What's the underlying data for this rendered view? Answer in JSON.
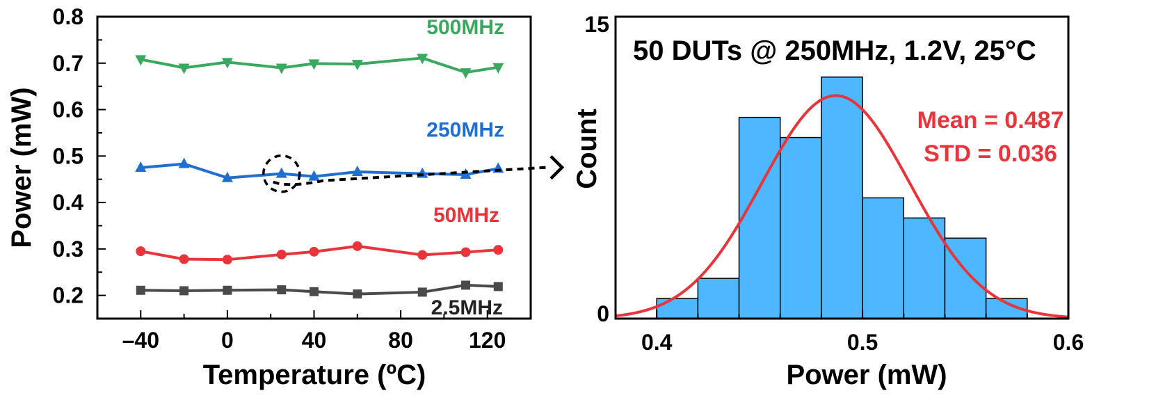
{
  "chart_data": [
    {
      "type": "line",
      "xlabel": "Temperature (ºC)",
      "ylabel": "Power (mW)",
      "xlim": [
        -60,
        140
      ],
      "ylim": [
        0.15,
        0.8
      ],
      "xticks": [
        "–40",
        "0",
        "40",
        "80",
        "120"
      ],
      "xtick_values": [
        -40,
        0,
        40,
        80,
        120
      ],
      "yticks": [
        "0.2",
        "0.3",
        "0.4",
        "0.5",
        "0.6",
        "0.7",
        "0.8"
      ],
      "ytick_values": [
        0.2,
        0.3,
        0.4,
        0.5,
        0.6,
        0.7,
        0.8
      ],
      "series": [
        {
          "name": "500MHz",
          "color": "#3aa85f",
          "marker": "triangle-down",
          "x": [
            -40,
            -20,
            0,
            25,
            40,
            60,
            90,
            110,
            125
          ],
          "values": [
            0.708,
            0.69,
            0.702,
            0.69,
            0.699,
            0.698,
            0.711,
            0.68,
            0.691
          ]
        },
        {
          "name": "250MHz",
          "color": "#1f6fd1",
          "marker": "triangle-up",
          "x": [
            -40,
            -20,
            0,
            25,
            40,
            60,
            90,
            110,
            125
          ],
          "values": [
            0.475,
            0.483,
            0.453,
            0.462,
            0.456,
            0.466,
            0.462,
            0.46,
            0.473
          ]
        },
        {
          "name": "50MHz",
          "color": "#e8353b",
          "marker": "circle",
          "x": [
            -40,
            -20,
            0,
            25,
            40,
            60,
            90,
            110,
            125
          ],
          "values": [
            0.295,
            0.278,
            0.277,
            0.288,
            0.294,
            0.306,
            0.287,
            0.293,
            0.298
          ]
        },
        {
          "name": "2.5MHz",
          "color": "#4a4a4a",
          "marker": "square",
          "x": [
            -40,
            -20,
            0,
            25,
            40,
            60,
            90,
            110,
            125
          ],
          "values": [
            0.211,
            0.21,
            0.211,
            0.212,
            0.208,
            0.203,
            0.207,
            0.222,
            0.219
          ]
        }
      ],
      "annotation": {
        "type": "dashed-circle-arrow",
        "x": 25,
        "y": 0.462
      }
    },
    {
      "type": "bar",
      "subtype": "histogram",
      "title": "50 DUTs @ 250MHz, 1.2V, 25°C",
      "xlabel": "Power (mW)",
      "ylabel": "Count",
      "xlim": [
        0.38,
        0.6
      ],
      "ylim": [
        0,
        15
      ],
      "xticks": [
        "0.4",
        "0.5",
        "0.6"
      ],
      "xtick_values": [
        0.4,
        0.5,
        0.6
      ],
      "yticks": [
        "0",
        "15"
      ],
      "ytick_values": [
        0,
        15
      ],
      "bin_edges": [
        0.4,
        0.42,
        0.44,
        0.46,
        0.48,
        0.5,
        0.52,
        0.54,
        0.56,
        0.58
      ],
      "values": [
        1,
        2,
        10,
        9,
        12,
        6,
        5,
        4,
        1
      ],
      "bar_color": "#4db8ff",
      "fit": {
        "type": "normal",
        "mean": 0.487,
        "std": 0.036,
        "color": "#e8353b"
      },
      "stats_text": [
        "Mean = 0.487",
        "STD = 0.036"
      ]
    }
  ]
}
